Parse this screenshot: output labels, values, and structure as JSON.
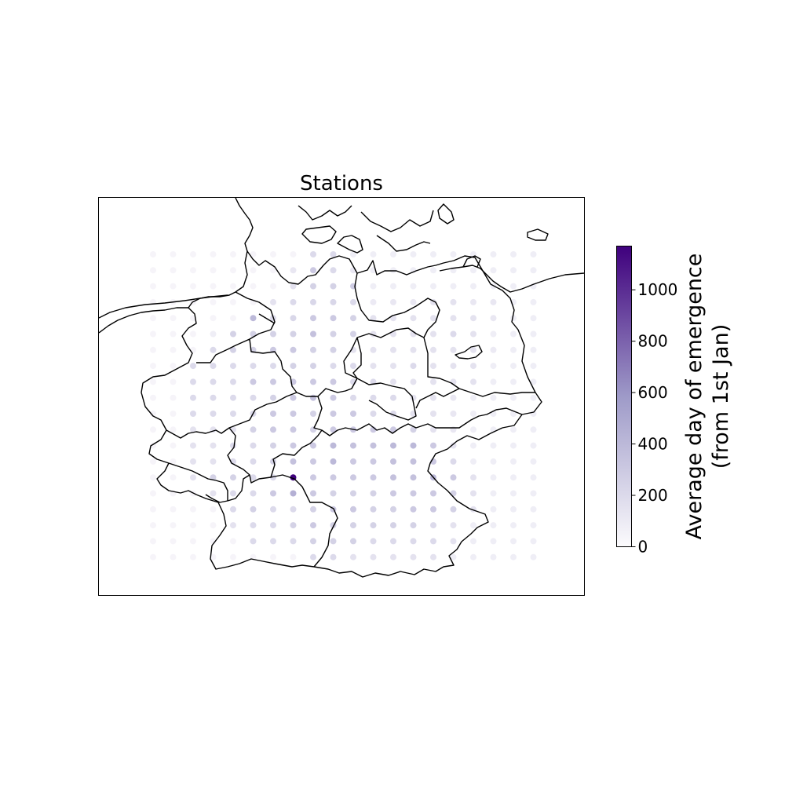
{
  "chart_data": {
    "type": "scatter",
    "title": "Stations",
    "colorbar": {
      "label_line1": "Average day of emergence",
      "label_line2": "(from 1st Jan)",
      "min": 0,
      "max": 1170,
      "ticks": [
        0,
        200,
        400,
        600,
        800,
        1000
      ],
      "tick_labels": [
        "0",
        "200",
        "400",
        "600",
        "800",
        "1000"
      ],
      "colormap": "Purples",
      "color_low": "#fcfbfd",
      "color_mid": "#9e9ac8",
      "color_high": "#3f007d"
    },
    "grid": {
      "columns": 20,
      "rows": 20,
      "values": [
        [
          40,
          40,
          40,
          40,
          40,
          40,
          40,
          40,
          200,
          200,
          80,
          80,
          80,
          80,
          80,
          80,
          80,
          80,
          80,
          80
        ],
        [
          40,
          40,
          40,
          40,
          40,
          40,
          40,
          120,
          300,
          200,
          120,
          80,
          80,
          80,
          80,
          80,
          80,
          80,
          80,
          80
        ],
        [
          40,
          40,
          40,
          40,
          40,
          40,
          40,
          150,
          250,
          250,
          280,
          80,
          80,
          80,
          80,
          80,
          80,
          80,
          80,
          80
        ],
        [
          40,
          40,
          40,
          40,
          40,
          40,
          150,
          200,
          220,
          220,
          200,
          100,
          120,
          120,
          150,
          150,
          120,
          120,
          80,
          80
        ],
        [
          40,
          40,
          40,
          40,
          40,
          400,
          200,
          220,
          300,
          300,
          250,
          150,
          150,
          150,
          150,
          150,
          150,
          120,
          80,
          80
        ],
        [
          40,
          40,
          40,
          80,
          250,
          250,
          250,
          250,
          350,
          250,
          250,
          150,
          150,
          150,
          150,
          200,
          150,
          80,
          80,
          80
        ],
        [
          40,
          40,
          40,
          200,
          250,
          250,
          300,
          300,
          250,
          250,
          150,
          150,
          150,
          150,
          150,
          150,
          150,
          100,
          80,
          80
        ],
        [
          40,
          40,
          200,
          200,
          200,
          200,
          200,
          250,
          250,
          200,
          200,
          150,
          150,
          200,
          150,
          150,
          150,
          80,
          80,
          80
        ],
        [
          40,
          40,
          200,
          200,
          200,
          300,
          300,
          300,
          300,
          300,
          200,
          200,
          150,
          150,
          150,
          150,
          150,
          80,
          80,
          80
        ],
        [
          40,
          40,
          200,
          200,
          200,
          200,
          250,
          300,
          350,
          300,
          200,
          200,
          200,
          150,
          150,
          120,
          80,
          80,
          80,
          80
        ],
        [
          40,
          40,
          200,
          200,
          200,
          200,
          300,
          300,
          250,
          300,
          300,
          200,
          200,
          150,
          150,
          120,
          80,
          80,
          80,
          80
        ],
        [
          40,
          40,
          150,
          150,
          150,
          250,
          300,
          300,
          250,
          300,
          300,
          300,
          300,
          250,
          150,
          120,
          80,
          80,
          80,
          80
        ],
        [
          40,
          40,
          150,
          150,
          200,
          200,
          250,
          300,
          300,
          400,
          350,
          350,
          400,
          400,
          300,
          150,
          80,
          80,
          80,
          80
        ],
        [
          40,
          40,
          150,
          150,
          200,
          200,
          250,
          350,
          300,
          400,
          300,
          300,
          350,
          350,
          300,
          200,
          80,
          80,
          80,
          80
        ],
        [
          40,
          40,
          150,
          250,
          250,
          200,
          200,
          1170,
          300,
          300,
          300,
          300,
          350,
          350,
          400,
          300,
          150,
          80,
          80,
          80
        ],
        [
          40,
          40,
          40,
          150,
          200,
          200,
          300,
          450,
          300,
          250,
          250,
          250,
          300,
          300,
          300,
          250,
          150,
          80,
          80,
          80
        ],
        [
          40,
          40,
          40,
          40,
          200,
          250,
          200,
          200,
          250,
          300,
          300,
          250,
          250,
          300,
          300,
          250,
          150,
          80,
          80,
          80
        ],
        [
          40,
          40,
          40,
          40,
          150,
          200,
          200,
          250,
          300,
          250,
          250,
          250,
          250,
          250,
          200,
          150,
          80,
          80,
          80,
          80
        ],
        [
          40,
          40,
          40,
          40,
          40,
          200,
          200,
          200,
          250,
          250,
          250,
          200,
          200,
          200,
          200,
          150,
          80,
          80,
          80,
          80
        ],
        [
          40,
          40,
          40,
          40,
          40,
          40,
          40,
          40,
          200,
          200,
          150,
          150,
          150,
          150,
          150,
          80,
          80,
          80,
          80,
          80
        ]
      ]
    },
    "map": {
      "region": "Germany",
      "features": [
        "national border",
        "federal state borders",
        "coastlines"
      ]
    }
  }
}
